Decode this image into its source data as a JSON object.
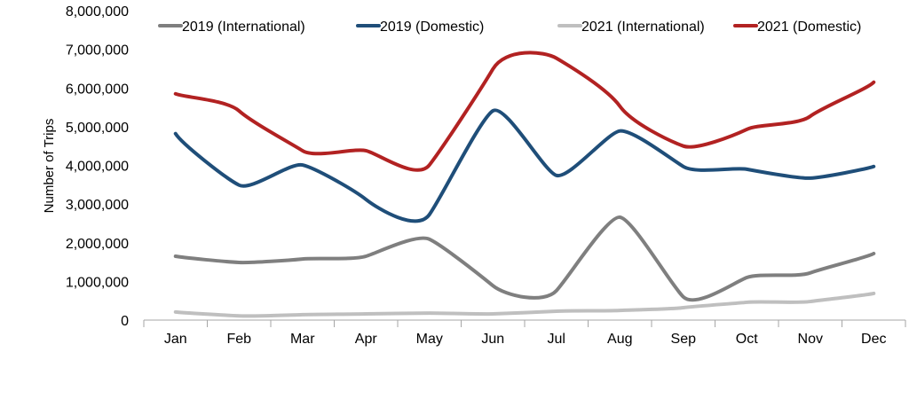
{
  "chart_data": {
    "type": "line",
    "title": "",
    "xlabel": "",
    "ylabel": "Number of Trips",
    "ylim": [
      0,
      8000000
    ],
    "yticks": [
      0,
      1000000,
      2000000,
      3000000,
      4000000,
      5000000,
      6000000,
      7000000,
      8000000
    ],
    "ytick_labels": [
      "0",
      "1,000,000",
      "2,000,000",
      "3,000,000",
      "4,000,000",
      "5,000,000",
      "6,000,000",
      "7,000,000",
      "8,000,000"
    ],
    "categories": [
      "Jan",
      "Feb",
      "Mar",
      "Apr",
      "May",
      "Jun",
      "Jul",
      "Aug",
      "Sep",
      "Oct",
      "Nov",
      "Dec"
    ],
    "grid": false,
    "legend_position": "top",
    "smooth": true,
    "series": [
      {
        "name": "2019 (International)",
        "color": "#7f7f7f",
        "values": [
          1650000,
          1490000,
          1580000,
          1650000,
          2090000,
          890000,
          760000,
          2660000,
          600000,
          1100000,
          1220000,
          1720000
        ]
      },
      {
        "name": "2019 (Domestic)",
        "color": "#1f4e79",
        "values": [
          4820000,
          3490000,
          4010000,
          3120000,
          2730000,
          5410000,
          3740000,
          4890000,
          3970000,
          3900000,
          3670000,
          3970000
        ]
      },
      {
        "name": "2021 (International)",
        "color": "#bfbfbf",
        "values": [
          210000,
          110000,
          140000,
          160000,
          180000,
          160000,
          230000,
          250000,
          320000,
          460000,
          480000,
          690000
        ]
      },
      {
        "name": "2021 (Domestic)",
        "color": "#b22222",
        "values": [
          5850000,
          5410000,
          4380000,
          4380000,
          4010000,
          6490000,
          6770000,
          5530000,
          4500000,
          4930000,
          5270000,
          6150000
        ]
      }
    ]
  }
}
